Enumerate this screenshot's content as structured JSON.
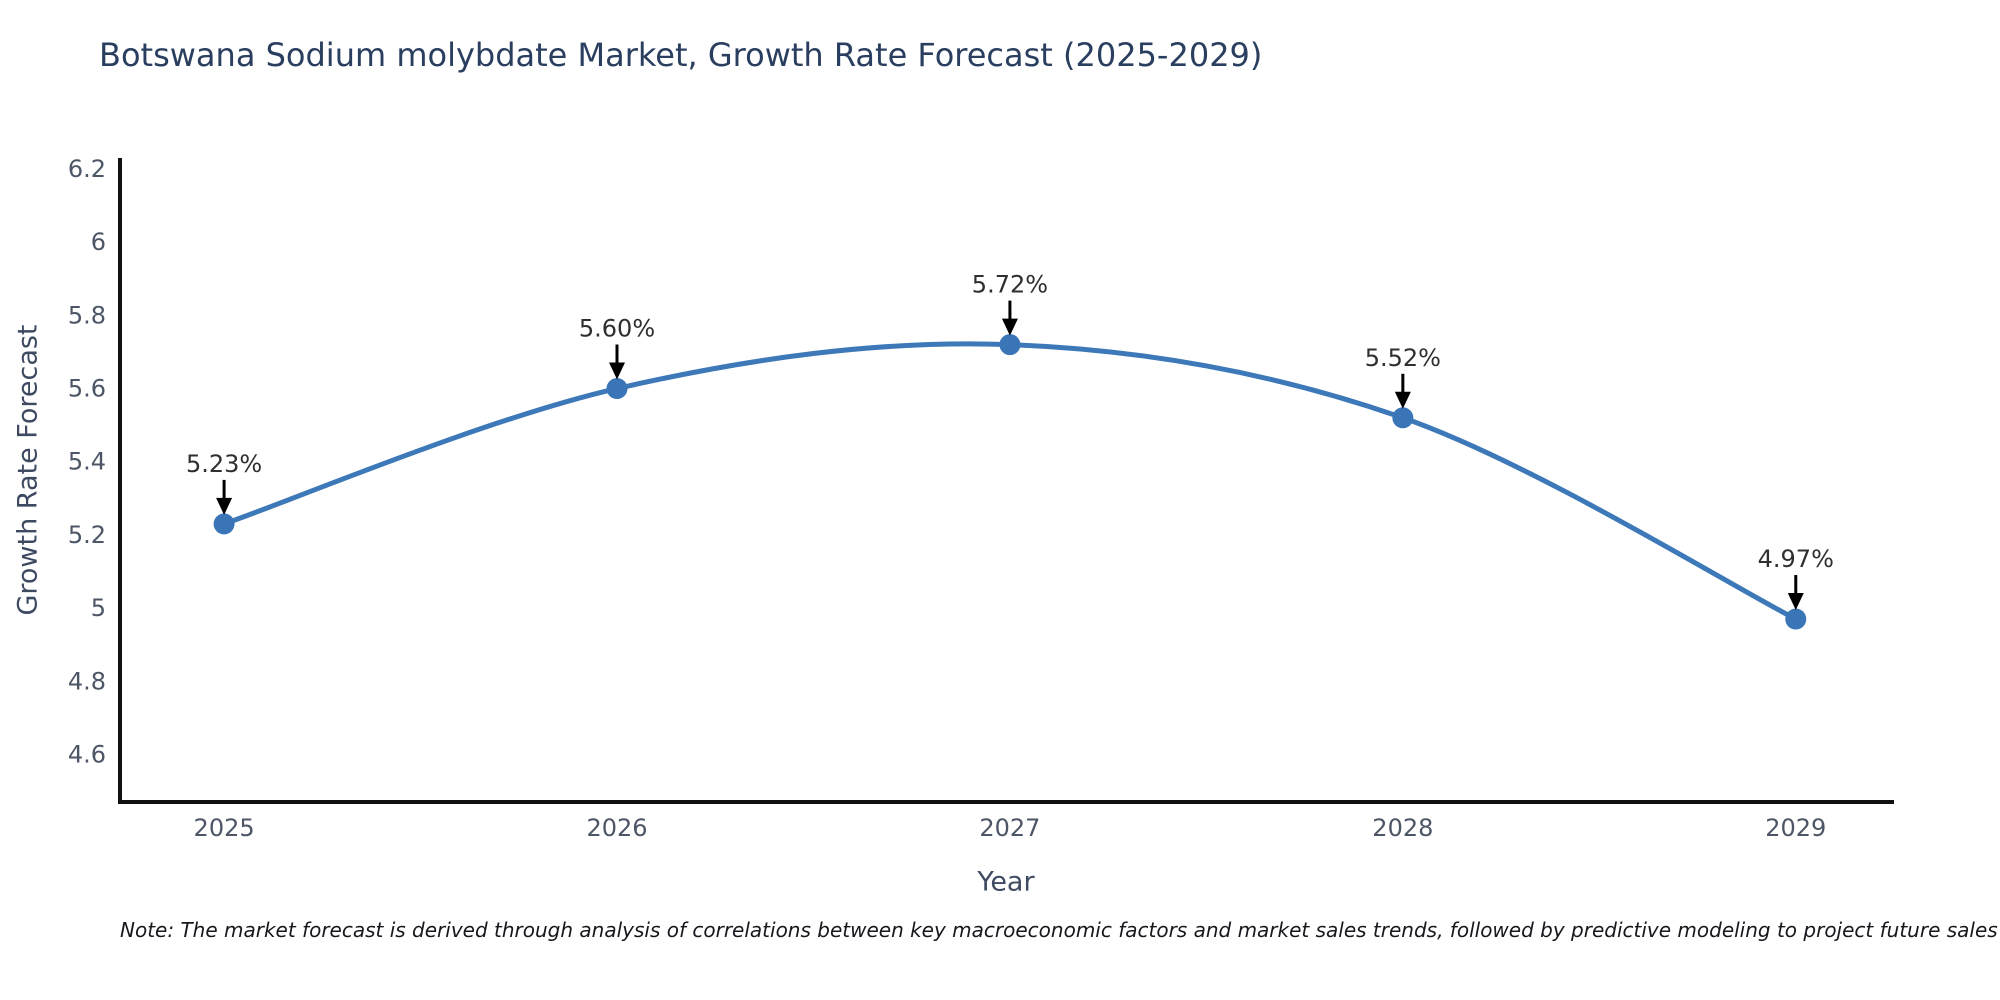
{
  "title": "Botswana Sodium molybdate Market, Growth Rate Forecast (2025-2029)",
  "note": "Note: The market forecast is derived through analysis of correlations between key macroeconomic factors and market sales trends, followed by predictive modeling to project future sales",
  "colors": {
    "title": "#2a3f5f",
    "tick_label": "#4d5666",
    "axis_line": "#111111",
    "series_line": "#3d79b8",
    "marker_fill": "#3a76b7",
    "annotation_text": "#2f2f2f",
    "arrow": "#000000",
    "background": "#ffffff"
  },
  "chart_data": {
    "type": "line",
    "title": "Botswana Sodium molybdate Market, Growth Rate Forecast (2025-2029)",
    "xlabel": "Year",
    "ylabel": "Growth Rate Forecast",
    "x": [
      2025,
      2026,
      2027,
      2028,
      2029
    ],
    "y": [
      5.23,
      5.6,
      5.72,
      5.52,
      4.97
    ],
    "point_labels": [
      "5.23%",
      "5.60%",
      "5.72%",
      "5.52%",
      "4.97%"
    ],
    "xtick_labels": [
      "2025",
      "2026",
      "2027",
      "2028",
      "2029"
    ],
    "ytick_values": [
      4.6,
      4.8,
      5.0,
      5.2,
      5.4,
      5.6,
      5.8,
      6.0,
      6.2
    ],
    "ytick_labels": [
      "4.6",
      "4.8",
      "5",
      "5.2",
      "5.4",
      "5.6",
      "5.8",
      "6",
      "6.2"
    ],
    "xlim": [
      2024.73,
      2029.25
    ],
    "ylim": [
      4.47,
      6.23
    ],
    "grid": false,
    "legend": "none",
    "line_shape": "spline",
    "annotation_style": "label-above-with-down-arrow"
  }
}
